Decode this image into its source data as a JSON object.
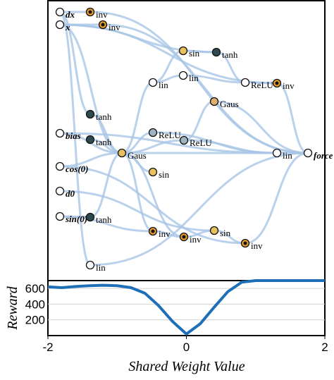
{
  "diagram": {
    "nodes": [
      "dx",
      "inv",
      "inv",
      "x",
      "sin",
      "tanh",
      "lin",
      "lin",
      "ReLU",
      "inv",
      "Gaus",
      "tanh",
      "bias",
      "tanh",
      "ReLU",
      "ReLU",
      "Gaus",
      "sin",
      "lin",
      "force",
      "cos(0)",
      "d0",
      "sin(0)",
      "tanh",
      "inv",
      "inv",
      "sin",
      "inv",
      "lin"
    ]
  },
  "chart_data": {
    "type": "line",
    "xlabel": "Shared Weight Value",
    "ylabel": "Reward",
    "x": [
      -2,
      -1.8,
      -1.6,
      -1.4,
      -1.2,
      -1,
      -0.8,
      -0.6,
      -0.4,
      -0.2,
      0,
      0.2,
      0.4,
      0.6,
      0.8,
      1,
      1.2,
      1.4,
      1.6,
      1.8,
      2
    ],
    "series": [
      {
        "color": "#1f6fb8",
        "values": [
          620,
          610,
          625,
          635,
          640,
          635,
          610,
          540,
          380,
          180,
          20,
          150,
          360,
          560,
          680,
          700,
          700,
          700,
          700,
          700,
          700
        ]
      }
    ],
    "xlim": [
      -2,
      2
    ],
    "ylim": [
      0,
      700
    ],
    "xticks": [
      -2,
      0,
      2
    ],
    "yticks": [
      200,
      400,
      600
    ],
    "grid": true
  }
}
